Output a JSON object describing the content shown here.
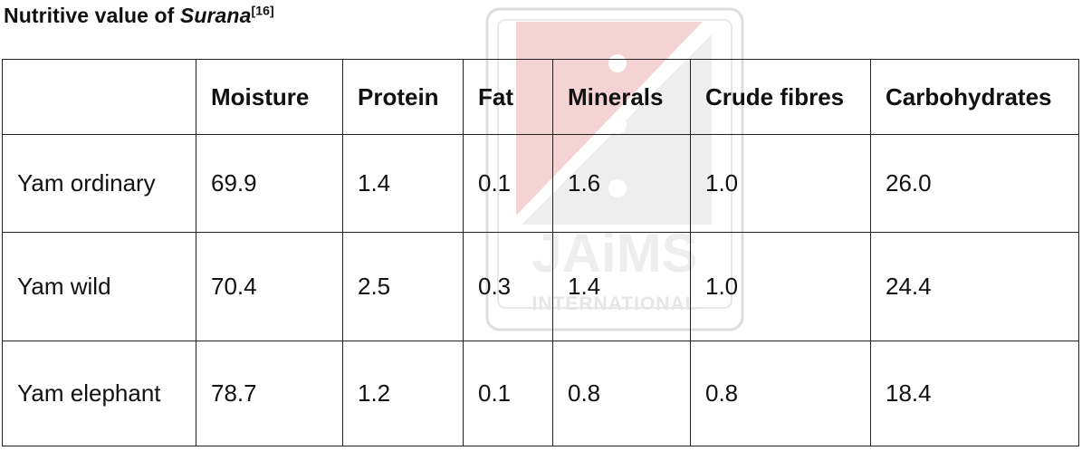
{
  "title": {
    "prefix": "Nutritive value of ",
    "italic": "Surana",
    "reference": "[16]"
  },
  "watermark": {
    "brand": "JAiMS",
    "subtitle": "INTERNATIONAL",
    "color": "#f3c9c9"
  },
  "table": {
    "headers": [
      "",
      "Moisture",
      "Protein",
      "Fat",
      "Minerals",
      "Crude fibres",
      "Carbohydrates"
    ],
    "rows": [
      [
        "Yam ordinary",
        "69.9",
        "1.4",
        "0.1",
        "1.6",
        "1.0",
        "26.0"
      ],
      [
        "Yam wild",
        "70.4",
        "2.5",
        "0.3",
        "1.4",
        "1.0",
        "24.4"
      ],
      [
        "Yam elephant",
        "78.7",
        "1.2",
        "0.1",
        "0.8",
        "0.8",
        "18.4"
      ]
    ]
  }
}
